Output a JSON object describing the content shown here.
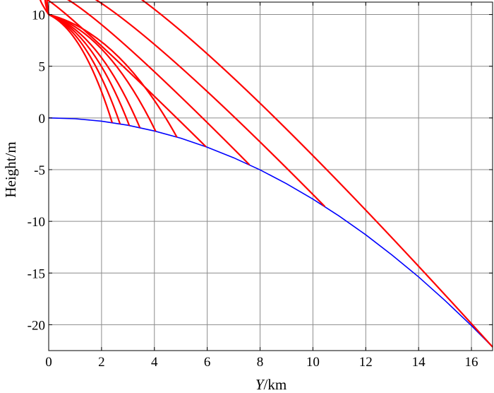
{
  "chart_data": {
    "type": "line",
    "xlabel_var": "Y",
    "xlabel_unit": "/km",
    "ylabel": "Height/m",
    "xlim": [
      0,
      16.8
    ],
    "ylim": [
      -22.5,
      11.2
    ],
    "x_ticks": [
      0,
      2,
      4,
      6,
      8,
      10,
      12,
      14,
      16
    ],
    "y_ticks": [
      10,
      5,
      0,
      -5,
      -10,
      -15,
      -20
    ],
    "grid": true,
    "colors": {
      "earth": "#0000ff",
      "trajectory": "#ff0000"
    },
    "earth_curve": {
      "description_in_data_units": "y = -x^2 / 12.74",
      "x": [
        0,
        1,
        2,
        3,
        4,
        5,
        6,
        7,
        8,
        9,
        10,
        11,
        12,
        13,
        14,
        15,
        16,
        16.8
      ],
      "y": [
        0,
        -0.08,
        -0.31,
        -0.71,
        -1.26,
        -1.96,
        -2.83,
        -3.85,
        -5.02,
        -6.36,
        -7.85,
        -9.5,
        -11.3,
        -13.27,
        -15.38,
        -17.66,
        -20.09,
        -22.15
      ]
    },
    "trajectories": [
      {
        "start": [
          0,
          10
        ],
        "end": [
          2.4,
          -0.45
        ],
        "apex": [
          0,
          10
        ]
      },
      {
        "start": [
          0,
          10
        ],
        "end": [
          2.7,
          -0.57
        ],
        "apex": [
          0,
          10
        ]
      },
      {
        "start": [
          0,
          10
        ],
        "end": [
          3.05,
          -0.73
        ],
        "apex": [
          0,
          10
        ]
      },
      {
        "start": [
          0,
          10
        ],
        "end": [
          3.45,
          -0.93
        ],
        "apex": [
          0,
          10
        ]
      },
      {
        "start": [
          0,
          10
        ],
        "end": [
          4.05,
          -1.29
        ],
        "apex": [
          0,
          10
        ]
      },
      {
        "start": [
          0,
          10
        ],
        "end": [
          4.85,
          -1.85
        ],
        "apex": [
          0,
          10
        ]
      },
      {
        "start": [
          0,
          10
        ],
        "end": [
          5.95,
          -2.78
        ],
        "apex": [
          0.5,
          10.15
        ]
      },
      {
        "start": [
          0,
          10
        ],
        "end": [
          7.6,
          -4.53
        ],
        "apex": [
          1.1,
          10.4
        ]
      },
      {
        "start": [
          0,
          10
        ],
        "end": [
          10.45,
          -8.57
        ],
        "apex": [
          1.8,
          10.8
        ]
      },
      {
        "start": [
          0,
          10
        ],
        "end": [
          16.8,
          -22.15
        ],
        "apex": [
          3.0,
          11.3
        ]
      }
    ]
  }
}
